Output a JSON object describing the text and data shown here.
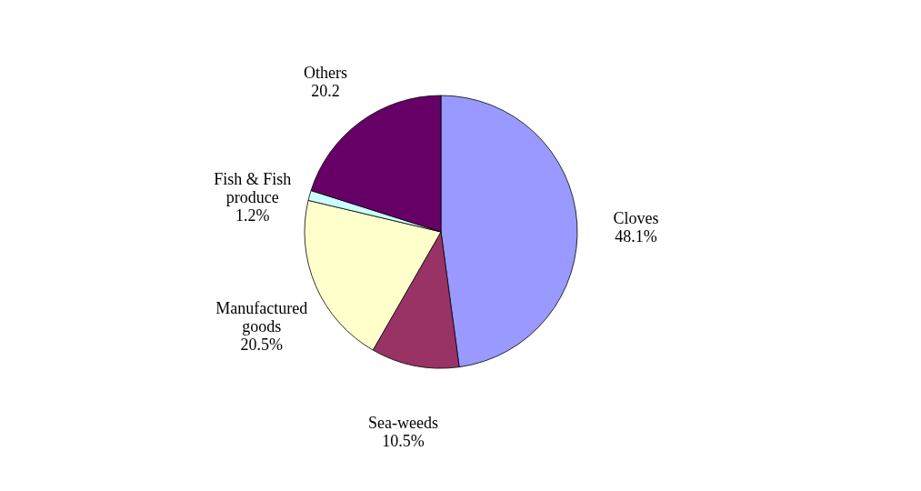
{
  "chart_data": {
    "type": "pie",
    "categories": [
      "Cloves",
      "Sea-weeds",
      "Manufactured goods",
      "Fish & Fish produce",
      "Others"
    ],
    "values": [
      48.1,
      10.5,
      20.5,
      1.2,
      20.2
    ],
    "value_labels": [
      "48.1%",
      "10.5%",
      "20.5%",
      "1.2%",
      "20.2"
    ],
    "colors": [
      "#9999ff",
      "#993366",
      "#ffffcc",
      "#ccffff",
      "#660066"
    ],
    "legend": false
  }
}
